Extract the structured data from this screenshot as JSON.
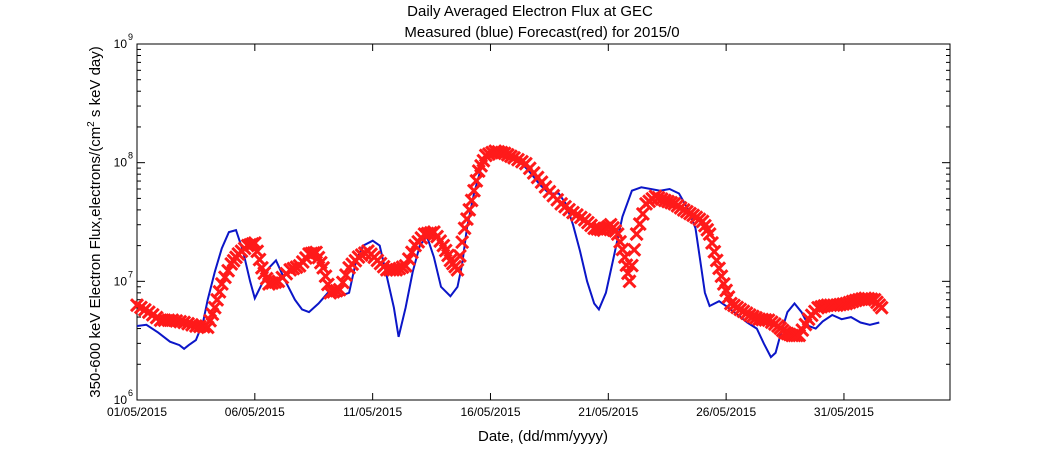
{
  "chart_data": {
    "type": "line",
    "title": "Daily Averaged Electron Flux at GEC",
    "subtitle": "Measured (blue) Forecast(red) for 2015/0",
    "xlabel": "Date, (dd/mm/yyyy)",
    "ylabel_main": "350-600 keV Electron Flux,electrons/(cm",
    "ylabel_sup": "2",
    "ylabel_tail": " s keV day)",
    "y_scale": "log",
    "ylim": [
      1000000,
      1000000000
    ],
    "xlim": [
      0,
      34.5
    ],
    "x_ticks": [
      {
        "x": 0,
        "label": "01/05/2015"
      },
      {
        "x": 5,
        "label": "06/05/2015"
      },
      {
        "x": 10,
        "label": "11/05/2015"
      },
      {
        "x": 15,
        "label": "16/05/2015"
      },
      {
        "x": 20,
        "label": "21/05/2015"
      },
      {
        "x": 25,
        "label": "26/05/2015"
      },
      {
        "x": 30,
        "label": "31/05/2015"
      }
    ],
    "y_ticks": [
      {
        "value": 1000000,
        "base": "10",
        "exp": "6"
      },
      {
        "value": 10000000,
        "base": "10",
        "exp": "7"
      },
      {
        "value": 100000000,
        "base": "10",
        "exp": "8"
      },
      {
        "value": 1000000000,
        "base": "10",
        "exp": "9"
      }
    ],
    "grid": false,
    "series": [
      {
        "name": "Measured",
        "color": "#0b16c8",
        "style": "line",
        "points": [
          [
            0,
            4200000
          ],
          [
            0.4,
            4300000
          ],
          [
            0.9,
            3700000
          ],
          [
            1.4,
            3100000
          ],
          [
            1.8,
            2900000
          ],
          [
            2.0,
            2700000
          ],
          [
            2.2,
            2900000
          ],
          [
            2.5,
            3200000
          ],
          [
            2.8,
            4500000
          ],
          [
            3.0,
            7000000
          ],
          [
            3.3,
            12000000
          ],
          [
            3.6,
            19000000
          ],
          [
            3.9,
            26000000
          ],
          [
            4.2,
            27000000
          ],
          [
            4.5,
            18000000
          ],
          [
            4.8,
            10000000
          ],
          [
            5.0,
            7200000
          ],
          [
            5.3,
            9500000
          ],
          [
            5.6,
            13000000
          ],
          [
            5.9,
            15000000
          ],
          [
            6.3,
            10000000
          ],
          [
            6.7,
            7000000
          ],
          [
            7.0,
            5800000
          ],
          [
            7.3,
            5500000
          ],
          [
            7.7,
            6500000
          ],
          [
            8.1,
            8000000
          ],
          [
            8.6,
            7500000
          ],
          [
            9.0,
            8000000
          ],
          [
            9.3,
            15000000
          ],
          [
            9.6,
            20000000
          ],
          [
            10.0,
            22000000
          ],
          [
            10.3,
            20000000
          ],
          [
            10.6,
            11000000
          ],
          [
            10.9,
            6000000
          ],
          [
            11.1,
            3400000
          ],
          [
            11.4,
            6000000
          ],
          [
            11.7,
            12000000
          ],
          [
            12.0,
            20000000
          ],
          [
            12.3,
            24000000
          ],
          [
            12.6,
            16000000
          ],
          [
            12.9,
            9000000
          ],
          [
            13.3,
            7500000
          ],
          [
            13.6,
            9000000
          ],
          [
            13.8,
            14000000
          ],
          [
            14.0,
            28000000
          ],
          [
            14.3,
            55000000
          ],
          [
            14.6,
            90000000
          ],
          [
            14.9,
            115000000
          ],
          [
            15.2,
            128000000
          ],
          [
            15.5,
            120000000
          ],
          [
            15.9,
            110000000
          ],
          [
            16.3,
            100000000
          ],
          [
            16.7,
            82000000
          ],
          [
            17.1,
            65000000
          ],
          [
            17.5,
            55000000
          ],
          [
            17.9,
            55000000
          ],
          [
            18.2,
            45000000
          ],
          [
            18.5,
            30000000
          ],
          [
            18.8,
            18000000
          ],
          [
            19.1,
            10000000
          ],
          [
            19.4,
            6500000
          ],
          [
            19.6,
            5800000
          ],
          [
            19.9,
            8000000
          ],
          [
            20.2,
            15000000
          ],
          [
            20.6,
            35000000
          ],
          [
            21.0,
            58000000
          ],
          [
            21.4,
            62000000
          ],
          [
            21.8,
            60000000
          ],
          [
            22.2,
            58000000
          ],
          [
            22.6,
            60000000
          ],
          [
            23.0,
            55000000
          ],
          [
            23.4,
            40000000
          ],
          [
            23.7,
            28000000
          ],
          [
            23.9,
            15000000
          ],
          [
            24.1,
            8000000
          ],
          [
            24.3,
            6200000
          ],
          [
            24.7,
            6800000
          ],
          [
            25.1,
            6000000
          ],
          [
            25.5,
            5200000
          ],
          [
            25.9,
            4500000
          ],
          [
            26.3,
            4000000
          ],
          [
            26.6,
            3000000
          ],
          [
            26.9,
            2300000
          ],
          [
            27.1,
            2500000
          ],
          [
            27.3,
            3500000
          ],
          [
            27.6,
            5500000
          ],
          [
            27.9,
            6500000
          ],
          [
            28.2,
            5500000
          ],
          [
            28.5,
            4200000
          ],
          [
            28.8,
            4000000
          ],
          [
            29.1,
            4600000
          ],
          [
            29.5,
            5200000
          ],
          [
            29.9,
            4800000
          ],
          [
            30.3,
            5000000
          ],
          [
            30.7,
            4500000
          ],
          [
            31.1,
            4300000
          ],
          [
            31.5,
            4500000
          ]
        ]
      },
      {
        "name": "Forecast",
        "color": "#ff1a1a",
        "style": "x-markers",
        "points": [
          [
            0,
            6300000
          ],
          [
            0.5,
            5500000
          ],
          [
            1.0,
            4700000
          ],
          [
            1.5,
            4700000
          ],
          [
            2.0,
            4500000
          ],
          [
            2.5,
            4200000
          ],
          [
            3.0,
            4100000
          ],
          [
            3.3,
            6000000
          ],
          [
            3.6,
            9500000
          ],
          [
            4.0,
            14000000
          ],
          [
            4.3,
            17000000
          ],
          [
            4.7,
            20000000
          ],
          [
            5.0,
            21000000
          ],
          [
            5.3,
            13000000
          ],
          [
            5.6,
            9500000
          ],
          [
            6.0,
            10000000
          ],
          [
            6.5,
            12500000
          ],
          [
            6.9,
            13500000
          ],
          [
            7.3,
            17000000
          ],
          [
            7.6,
            17500000
          ],
          [
            7.9,
            13000000
          ],
          [
            8.2,
            8000000
          ],
          [
            8.6,
            8500000
          ],
          [
            9.0,
            13000000
          ],
          [
            9.4,
            16000000
          ],
          [
            9.8,
            18000000
          ],
          [
            10.2,
            15000000
          ],
          [
            10.6,
            12500000
          ],
          [
            11.0,
            12500000
          ],
          [
            11.4,
            13500000
          ],
          [
            11.8,
            20000000
          ],
          [
            12.2,
            25000000
          ],
          [
            12.6,
            26000000
          ],
          [
            13.0,
            20000000
          ],
          [
            13.3,
            15000000
          ],
          [
            13.6,
            12500000
          ],
          [
            13.9,
            28000000
          ],
          [
            14.2,
            48000000
          ],
          [
            14.5,
            85000000
          ],
          [
            14.8,
            115000000
          ],
          [
            15.2,
            125000000
          ],
          [
            15.6,
            120000000
          ],
          [
            16.0,
            110000000
          ],
          [
            16.5,
            98000000
          ],
          [
            17.0,
            75000000
          ],
          [
            17.5,
            57000000
          ],
          [
            18.0,
            45000000
          ],
          [
            18.5,
            38000000
          ],
          [
            19.0,
            33000000
          ],
          [
            19.4,
            28000000
          ],
          [
            19.8,
            27000000
          ],
          [
            20.1,
            30000000
          ],
          [
            20.4,
            25000000
          ],
          [
            20.7,
            16000000
          ],
          [
            20.9,
            10000000
          ],
          [
            21.2,
            25000000
          ],
          [
            21.6,
            45000000
          ],
          [
            22.0,
            52000000
          ],
          [
            22.4,
            48000000
          ],
          [
            22.8,
            45000000
          ],
          [
            23.2,
            40000000
          ],
          [
            23.6,
            36000000
          ],
          [
            24.0,
            32000000
          ],
          [
            24.3,
            25000000
          ],
          [
            24.6,
            15000000
          ],
          [
            24.9,
            9500000
          ],
          [
            25.2,
            6500000
          ],
          [
            25.6,
            5800000
          ],
          [
            26.0,
            5200000
          ],
          [
            26.4,
            4800000
          ],
          [
            26.8,
            4700000
          ],
          [
            27.2,
            4200000
          ],
          [
            27.5,
            3700000
          ],
          [
            27.8,
            3500000
          ],
          [
            28.1,
            3500000
          ],
          [
            28.5,
            4800000
          ],
          [
            28.9,
            6000000
          ],
          [
            29.3,
            6300000
          ],
          [
            29.7,
            6300000
          ],
          [
            30.1,
            6500000
          ],
          [
            30.5,
            6900000
          ],
          [
            30.9,
            7200000
          ],
          [
            31.3,
            7000000
          ],
          [
            31.6,
            6000000
          ]
        ]
      }
    ]
  }
}
